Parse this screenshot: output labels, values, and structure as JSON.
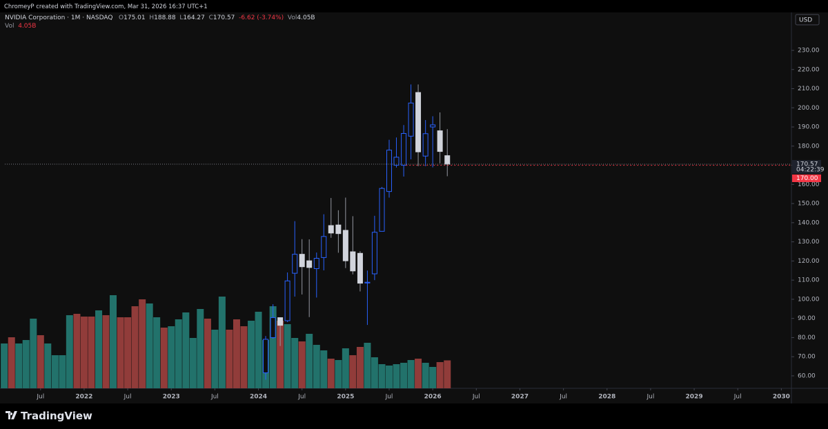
{
  "header": {
    "credit": "ChromeyP created with TradingView.com, Mar 31, 2026 16:37 UTC+1",
    "symbol": "NVIDIA Corporation · 1M · NASDAQ",
    "open_label": "O",
    "high_label": "H",
    "low_label": "L",
    "close_label": "C",
    "change": "-6.62 (-3.74%)",
    "volume_label": "Vol",
    "currency": "USD",
    "countdown": "04:22:39",
    "logo": "TradingView"
  },
  "chart_data": {
    "type": "candlestick",
    "x": [
      2021.083,
      2021.167,
      2021.25,
      2021.333,
      2021.417,
      2021.5,
      2021.583,
      2021.667,
      2021.75,
      2021.833,
      2021.917,
      2022,
      2022.083,
      2022.167,
      2022.25,
      2022.333,
      2022.417,
      2022.5,
      2022.583,
      2022.667,
      2022.75,
      2022.833,
      2022.917,
      2023,
      2023.083,
      2023.167,
      2023.25,
      2023.333,
      2023.417,
      2023.5,
      2023.583,
      2023.667,
      2023.75,
      2023.833,
      2023.917,
      2024,
      2024.083,
      2024.167,
      2024.25,
      2024.333,
      2024.417,
      2024.5,
      2024.583,
      2024.667,
      2024.75,
      2024.833,
      2024.917,
      2025,
      2025.083,
      2025.167,
      2025.25,
      2025.333,
      2025.417,
      2025.5,
      2025.583,
      2025.667,
      2025.75,
      2025.833,
      2025.917,
      2026,
      2026.083,
      2026.167
    ],
    "open": [
      null,
      null,
      null,
      null,
      null,
      null,
      null,
      null,
      null,
      null,
      null,
      null,
      null,
      null,
      null,
      null,
      null,
      null,
      null,
      null,
      null,
      null,
      null,
      null,
      null,
      null,
      null,
      null,
      null,
      null,
      null,
      null,
      null,
      null,
      null,
      null,
      61.6,
      80,
      90.4,
      88.8,
      113.6,
      123.5,
      120.1,
      116,
      121.8,
      138.5,
      138.8,
      136,
      124.8,
      124,
      108.5,
      113.3,
      135.5,
      156.3,
      170,
      170,
      185.2,
      208,
      174.8,
      190,
      188,
      175.01
    ],
    "high": [
      null,
      null,
      null,
      null,
      null,
      null,
      null,
      null,
      null,
      null,
      null,
      null,
      null,
      null,
      null,
      null,
      null,
      null,
      null,
      null,
      null,
      null,
      null,
      null,
      null,
      null,
      null,
      null,
      null,
      null,
      null,
      null,
      null,
      null,
      null,
      null,
      80.8,
      97.4,
      90.6,
      114,
      140.8,
      131.4,
      131.3,
      124.4,
      144.4,
      152.9,
      146.5,
      153.1,
      143.4,
      125.1,
      115,
      143.6,
      158.7,
      183.3,
      184.5,
      191,
      212.2,
      212.2,
      193.6,
      195.6,
      197.6,
      188.88
    ],
    "low": [
      null,
      null,
      null,
      null,
      null,
      null,
      null,
      null,
      null,
      null,
      null,
      null,
      null,
      null,
      null,
      null,
      null,
      null,
      null,
      null,
      null,
      null,
      null,
      null,
      null,
      null,
      null,
      null,
      null,
      null,
      null,
      null,
      null,
      null,
      null,
      null,
      58,
      79.4,
      75.6,
      88.1,
      101.4,
      102.5,
      90.7,
      100.9,
      115.1,
      132.1,
      124.3,
      116.3,
      113,
      104.1,
      86.6,
      110,
      135.4,
      153.1,
      168.8,
      164.1,
      173.1,
      169.5,
      169.5,
      168.9,
      171,
      164.27
    ],
    "close": [
      null,
      null,
      null,
      null,
      null,
      null,
      null,
      null,
      null,
      null,
      null,
      null,
      null,
      null,
      null,
      null,
      null,
      null,
      null,
      null,
      null,
      null,
      null,
      null,
      null,
      null,
      null,
      null,
      null,
      null,
      null,
      null,
      null,
      null,
      null,
      null,
      79.1,
      90.4,
      86.4,
      109.6,
      123.5,
      117,
      116.6,
      121.4,
      132.8,
      134.6,
      134.3,
      120.1,
      114.8,
      108.4,
      108.9,
      135,
      157.9,
      177.9,
      174.2,
      186.6,
      202.5,
      177,
      186.5,
      191.1,
      177.2,
      170.57
    ],
    "up_color": "#2962ff",
    "down_color": "#d1d4dc",
    "volume": {
      "values": [
        6.5,
        7.4,
        6.5,
        7.0,
        10.1,
        7.7,
        6.5,
        4.8,
        4.8,
        10.6,
        10.8,
        10.4,
        10.4,
        11.3,
        10.6,
        13.5,
        10.3,
        10.3,
        11.9,
        12.9,
        12.3,
        10.3,
        8.8,
        9.0,
        10.0,
        11.0,
        7.3,
        11.5,
        10.1,
        8.5,
        13.3,
        8.5,
        10.0,
        9.0,
        9.8,
        11.1,
        7.0,
        11.9,
        9.8,
        9.3,
        7.3,
        6.8,
        7.9,
        6.3,
        5.5,
        4.3,
        4.1,
        5.8,
        4.8,
        6.0,
        6.6,
        4.5,
        3.5,
        3.3,
        3.5,
        3.7,
        4.1,
        4.3,
        3.7,
        3.1,
        3.8,
        4.05
      ],
      "value_labels": [
        null,
        null,
        null,
        null,
        null,
        null,
        null,
        null,
        null,
        null,
        null,
        null,
        null,
        null,
        null,
        null,
        null,
        null,
        null,
        null,
        null,
        null,
        null,
        null,
        null,
        null,
        null,
        null,
        null,
        null,
        null,
        null,
        null,
        null,
        null,
        null,
        null,
        null,
        null,
        null,
        null,
        null,
        null,
        null,
        null,
        null,
        null,
        null,
        null,
        null,
        null,
        null,
        null,
        null,
        null,
        null,
        null,
        null,
        null,
        null,
        null,
        "4.05B"
      ],
      "colors": [
        "#22726b",
        "#913c3a",
        "#22726b",
        "#22726b",
        "#22726b",
        "#913c3a",
        "#22726b",
        "#22726b",
        "#22726b",
        "#22726b",
        "#913c3a",
        "#913c3a",
        "#913c3a",
        "#22726b",
        "#913c3a",
        "#22726b",
        "#913c3a",
        "#913c3a",
        "#913c3a",
        "#913c3a",
        "#22726b",
        "#22726b",
        "#913c3a",
        "#22726b",
        "#22726b",
        "#22726b",
        "#22726b",
        "#22726b",
        "#913c3a",
        "#22726b",
        "#22726b",
        "#913c3a",
        "#913c3a",
        "#913c3a",
        "#22726b",
        "#22726b",
        "#22726b",
        "#22726b",
        "#913c3a",
        "#22726b",
        "#22726b",
        "#913c3a",
        "#22726b",
        "#22726b",
        "#22726b",
        "#913c3a",
        "#22726b",
        "#22726b",
        "#913c3a",
        "#913c3a",
        "#22726b",
        "#22726b",
        "#22726b",
        "#22726b",
        "#22726b",
        "#22726b",
        "#22726b",
        "#913c3a",
        "#22726b",
        "#22726b",
        "#913c3a",
        "#913c3a"
      ]
    },
    "alert": {
      "value": 170,
      "label": "170.00",
      "color": "#f23645"
    },
    "xlim": [
      2021.09,
      2030.1
    ],
    "xticks": [
      {
        "value": 2021.5,
        "label": "Jul"
      },
      2022,
      {
        "value": 2022.5,
        "label": "Jul"
      },
      2023,
      {
        "value": 2023.5,
        "label": "Jul"
      },
      2024,
      {
        "value": 2024.5,
        "label": "Jul"
      },
      2025,
      {
        "value": 2025.5,
        "label": "Jul"
      },
      2026,
      {
        "value": 2026.5,
        "label": "Jul"
      },
      2027,
      {
        "value": 2027.5,
        "label": "Jul"
      },
      2028,
      {
        "value": 2028.5,
        "label": "Jul"
      },
      2029,
      {
        "value": 2029.5,
        "label": "Jul"
      },
      2030
    ],
    "ylim": [
      53.5,
      249.1
    ],
    "yticks": [
      {
        "value": 60,
        "label": "60.00"
      },
      {
        "value": 70,
        "label": "70.00"
      },
      {
        "value": 80,
        "label": "80.00"
      },
      {
        "value": 90,
        "label": "90.00"
      },
      {
        "value": 100,
        "label": "100.00"
      },
      {
        "value": 110,
        "label": "110.00"
      },
      {
        "value": 120,
        "label": "120.00"
      },
      {
        "value": 130,
        "label": "130.00"
      },
      {
        "value": 140,
        "label": "140.00"
      },
      {
        "value": 150,
        "label": "150.00"
      },
      {
        "value": 160,
        "label": "160.00"
      },
      {
        "value": 170,
        "label": "170.00"
      },
      {
        "value": 180,
        "label": "180.00"
      },
      {
        "value": 190,
        "label": "190.00"
      },
      {
        "value": 200,
        "label": "200.00"
      },
      {
        "value": 210,
        "label": "210.00"
      },
      {
        "value": 220,
        "label": "220.00"
      },
      {
        "value": 230,
        "label": "230.00"
      }
    ]
  }
}
